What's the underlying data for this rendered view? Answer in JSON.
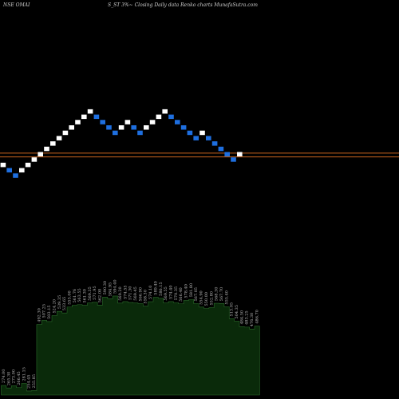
{
  "header": {
    "left": "NSE OMAI",
    "right": "S_ST 3%~ Closing Daily data Renko charts MunafaSutra.com"
  },
  "colors": {
    "background": "#000000",
    "up_brick": "#ffffff",
    "down_brick": "#1e6fe0",
    "level_line": "#c8641e",
    "volume_fill": "#0a2a0a",
    "volume_stroke": "#2a6a2a",
    "label_text": "#bbbbbb"
  },
  "chart_data": {
    "type": "renko",
    "directions": [
      "up",
      "down",
      "down",
      "up",
      "up",
      "up",
      "up",
      "up",
      "up",
      "up",
      "up",
      "up",
      "up",
      "up",
      "up",
      "down",
      "down",
      "down",
      "down",
      "up",
      "up",
      "down",
      "down",
      "up",
      "up",
      "up",
      "up",
      "down",
      "down",
      "down",
      "down",
      "down",
      "up",
      "down",
      "down",
      "down",
      "down",
      "down",
      "up"
    ],
    "levels": [
      2,
      2.7
    ],
    "volume_labels": [
      "274.00",
      "265.30",
      "273.00",
      "266.45",
      "281.15",
      "254.45",
      "255.85",
      "492.30",
      "507.25",
      "503.15",
      "524.20",
      "539.35",
      "533.65",
      "555.00",
      "561.76",
      "563.55",
      "561.30",
      "569.35",
      "571.95",
      "562.00",
      "590.30",
      "584.95",
      "594.40",
      "569.20",
      "574.55",
      "571.30",
      "569.45",
      "566.90",
      "558.30",
      "574.10",
      "589.40",
      "586.15",
      "569.55",
      "574.40",
      "570.35",
      "566.40",
      "578.40",
      "581.80",
      "567.05",
      "554.90",
      "550.00",
      "552.80",
      "568.30",
      "567.70",
      "555.40",
      "513.05",
      "504.35",
      "484.50",
      "483.25",
      "476.30",
      "486.70"
    ],
    "volume_values": [
      274.0,
      265.3,
      273.0,
      266.45,
      281.15,
      254.45,
      255.85,
      492.3,
      507.25,
      503.15,
      524.2,
      539.35,
      533.65,
      555.0,
      561.76,
      563.55,
      561.3,
      569.35,
      571.95,
      562.0,
      590.3,
      584.95,
      594.4,
      569.2,
      574.55,
      571.3,
      569.45,
      566.9,
      558.3,
      574.1,
      589.4,
      586.15,
      569.55,
      574.4,
      570.35,
      566.4,
      578.4,
      581.8,
      567.05,
      554.9,
      550.0,
      552.8,
      568.3,
      567.7,
      555.4,
      513.05,
      504.35,
      484.5,
      483.25,
      476.3,
      486.7
    ]
  }
}
